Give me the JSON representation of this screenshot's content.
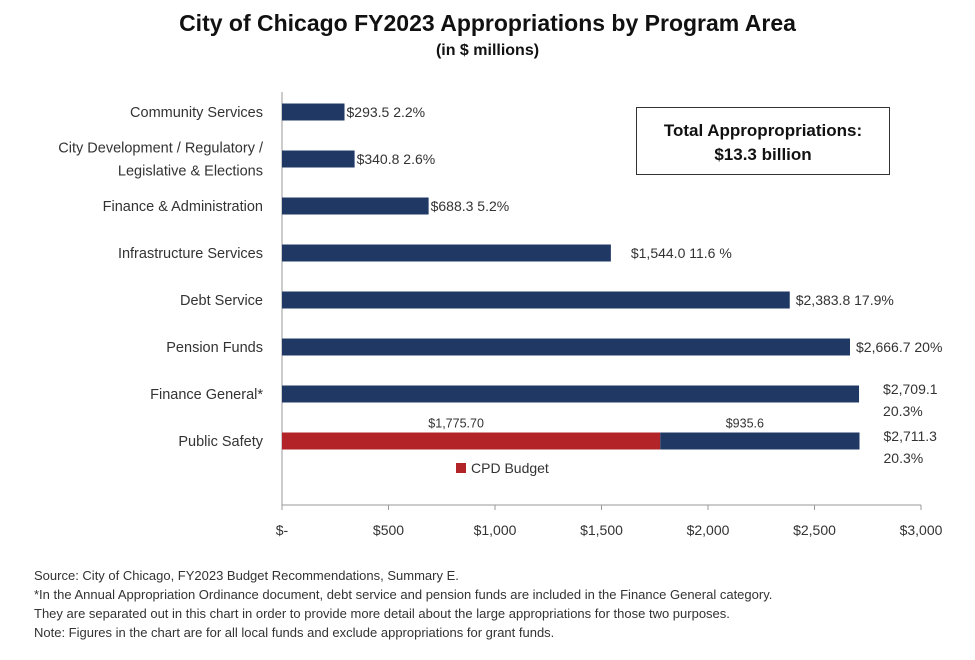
{
  "title": "City of Chicago FY2023 Appropriations by Program Area",
  "subtitle": "(in $ millions)",
  "total_box": {
    "line1": "Total Appropropriations:",
    "line2": "$13.3 billion"
  },
  "colors": {
    "primary_bar": "#1f3864",
    "cpd_bar": "#b22428",
    "axis": "#9a9a9a"
  },
  "chart_data": {
    "type": "bar",
    "orientation": "horizontal",
    "xlim": [
      0,
      3000
    ],
    "x_ticks": [
      0,
      500,
      1000,
      1500,
      2000,
      2500,
      3000
    ],
    "x_tick_labels": [
      "$-",
      "$500",
      "$1,000",
      "$1,500",
      "$2,000",
      "$2,500",
      "$3,000"
    ],
    "grid": false,
    "categories": [
      {
        "label_lines": [
          "Community Services"
        ],
        "value": 293.5,
        "value_text": "$293.5",
        "pct_text": "2.2%"
      },
      {
        "label_lines": [
          "City Development / Regulatory /",
          "Legislative & Elections"
        ],
        "value": 340.8,
        "value_text": "$340.8",
        "pct_text": "2.6%"
      },
      {
        "label_lines": [
          "Finance & Administration"
        ],
        "value": 688.3,
        "value_text": "$688.3",
        "pct_text": "5.2%"
      },
      {
        "label_lines": [
          "Infrastructure Services"
        ],
        "value": 1544.0,
        "value_text": "$1,544.0",
        "pct_text": "11.6 %"
      },
      {
        "label_lines": [
          "Debt Service"
        ],
        "value": 2383.8,
        "value_text": "$2,383.8",
        "pct_text": "17.9%"
      },
      {
        "label_lines": [
          "Pension Funds"
        ],
        "value": 2666.7,
        "value_text": "$2,666.7",
        "pct_text": "20%"
      },
      {
        "label_lines": [
          "Finance General*"
        ],
        "value": 2709.1,
        "value_text": "$2,709.1",
        "pct_text": "20.3%"
      },
      {
        "label_lines": [
          "Public Safety"
        ],
        "value": 2711.3,
        "value_text": "$2,711.3",
        "pct_text": "20.3%",
        "segments": [
          {
            "name": "CPD Budget",
            "value": 1775.7,
            "label": "$1,775.70",
            "color_key": "cpd_bar"
          },
          {
            "name": "",
            "value": 935.6,
            "label": "$935.6",
            "color_key": "primary_bar"
          }
        ]
      }
    ],
    "legend": {
      "label": "CPD Budget",
      "placement": "below-public-safety-bar"
    }
  },
  "footnotes": [
    "Source: City of Chicago, FY2023 Budget Recommendations, Summary E.",
    "*In the Annual Appropriation Ordinance document, debt service and pension funds are included in the Finance General category.",
    "They are separated out in this chart in order to provide more detail about the large appropriations for those two purposes.",
    "Note: Figures in the chart are for all local funds and exclude appropriations for grant funds."
  ]
}
